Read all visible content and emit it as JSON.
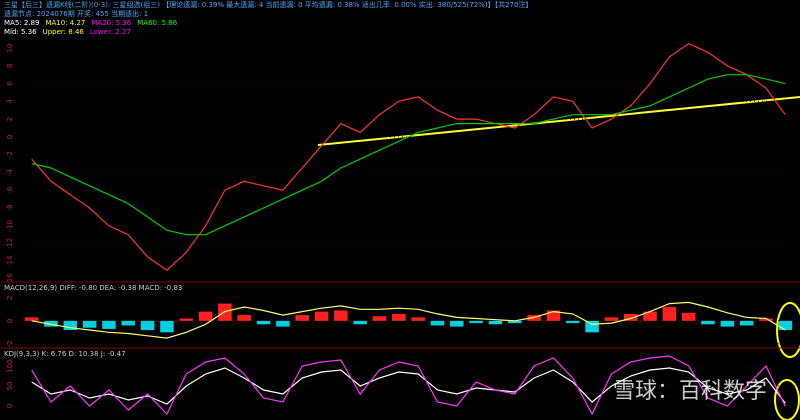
{
  "header": {
    "line1": "三星【后三】遗漏K线(二阶)(0-3): 三星组选(组三)  【理论遗漏: 0.39%  最大遗漏: 4  当前遗漏: 0  平均遗漏: 0.38%  适出几率: 0.00%  实出: 380/525(72%)】【共270注】",
    "line2": "遗漏节点: 2024076期 开奖: 455 当期遗出: 1",
    "ma": [
      {
        "text": "MA5: 2.89",
        "color": "#ffffff"
      },
      {
        "text": "MA10: 4.27",
        "color": "#ffff00"
      },
      {
        "text": "MA20: 5.36",
        "color": "#ff00ff"
      },
      {
        "text": "MA60: 5.86",
        "color": "#00ff00"
      }
    ],
    "boll": [
      {
        "text": "Mid: 5.36",
        "color": "#ffffff"
      },
      {
        "text": "Upper: 8.46",
        "color": "#ffff00"
      },
      {
        "text": "Lower: 2.27",
        "color": "#ff00ff"
      }
    ]
  },
  "watermark": "雪球：百科数字",
  "chart_data": [
    {
      "type": "line",
      "ylim": [
        -16.1,
        10.9
      ],
      "yticks": [
        10,
        8,
        6,
        4,
        2,
        0,
        -2,
        -4,
        -6,
        -8,
        -10,
        -12,
        -14,
        -16
      ],
      "series": [
        {
          "name": "K",
          "color": "#ff3333",
          "values": [
            -2.5,
            -5,
            -6.5,
            -8,
            -10,
            -11,
            -13.5,
            -15,
            -13,
            -10,
            -6,
            -5,
            -5.5,
            -6,
            -3.5,
            -1,
            1.5,
            0.5,
            2.5,
            4,
            4.5,
            3,
            2,
            2,
            1.5,
            1,
            2.5,
            4.5,
            4,
            1,
            2,
            3.5,
            6,
            9,
            10.5,
            9.5,
            8,
            7,
            5.5,
            2.5
          ]
        },
        {
          "name": "MA60",
          "color": "#00cc00",
          "values": [
            -3,
            -3.5,
            -4.5,
            -5.5,
            -6.5,
            -7.5,
            -9,
            -10.5,
            -11,
            -11,
            -10,
            -9,
            -8,
            -7,
            -6,
            -5,
            -3.5,
            -2.5,
            -1.5,
            -0.5,
            0.5,
            1,
            1.5,
            1.5,
            1.5,
            1.5,
            1.5,
            2,
            2.5,
            2.5,
            2.5,
            3,
            3.5,
            4.5,
            5.5,
            6.5,
            7,
            7,
            6.5,
            6
          ]
        }
      ]
    },
    {
      "type": "bar",
      "title": "MACD(12,26,9)  DIFF: -0.80  DEA: -0.38  MACD: -0.83",
      "ylim": [
        -2.1,
        3.2
      ],
      "yticks": [
        2,
        0,
        -2
      ],
      "color_up": "#ff2020",
      "color_down": "#00d0e0",
      "values": [
        0.3,
        -0.5,
        -0.8,
        -0.6,
        -0.7,
        -0.4,
        -0.8,
        -1,
        0.2,
        0.8,
        1.5,
        0.5,
        -0.3,
        -0.5,
        0.5,
        0.8,
        0.9,
        -0.3,
        0.4,
        0.6,
        0.3,
        -0.4,
        -0.5,
        -0.2,
        -0.3,
        -0.2,
        0.5,
        0.9,
        -0.2,
        -1,
        0.3,
        0.6,
        0.8,
        1.2,
        0.7,
        -0.3,
        -0.5,
        -0.4,
        0.2,
        -0.8
      ],
      "series": [
        {
          "name": "DIFF",
          "color": "#ffff66",
          "values": [
            0,
            -0.3,
            -0.6,
            -0.8,
            -1,
            -1.1,
            -1.3,
            -1.5,
            -1,
            -0.3,
            0.8,
            1.2,
            0.9,
            0.5,
            0.8,
            1.1,
            1.3,
            1,
            1,
            1.1,
            1,
            0.6,
            0.3,
            0.2,
            0.1,
            0,
            0.3,
            0.8,
            0.6,
            -0.3,
            -0.2,
            0.2,
            0.8,
            1.5,
            1.6,
            1.2,
            0.7,
            0.3,
            0.2,
            -0.8
          ]
        }
      ]
    },
    {
      "type": "line",
      "title": "KDJ(9,3,3)  K: 6.76  D: 10.38  J: -0.47",
      "ylim": [
        -30,
        140
      ],
      "yticks": [
        100,
        50,
        0
      ],
      "series": [
        {
          "name": "K",
          "color": "#ffffff",
          "values": [
            60,
            30,
            40,
            20,
            30,
            15,
            25,
            5,
            50,
            80,
            95,
            70,
            40,
            30,
            70,
            85,
            90,
            50,
            70,
            85,
            80,
            40,
            30,
            45,
            40,
            35,
            70,
            90,
            60,
            10,
            50,
            75,
            90,
            95,
            85,
            45,
            30,
            40,
            70,
            7
          ]
        },
        {
          "name": "J",
          "color": "#ff33ff",
          "values": [
            90,
            10,
            50,
            0,
            40,
            -10,
            30,
            -20,
            80,
            110,
            120,
            80,
            20,
            10,
            100,
            110,
            115,
            30,
            90,
            110,
            100,
            10,
            0,
            60,
            40,
            30,
            100,
            120,
            70,
            -20,
            80,
            110,
            120,
            125,
            100,
            20,
            0,
            50,
            100,
            -0.5
          ]
        }
      ]
    }
  ]
}
